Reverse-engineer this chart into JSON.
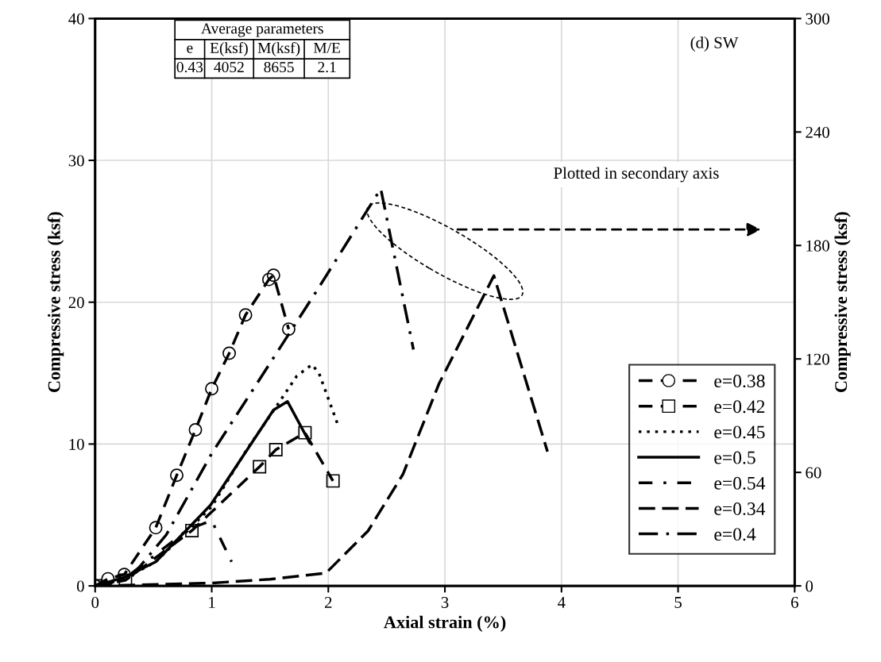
{
  "chart_data": {
    "type": "line",
    "xlabel": "Axial strain (%)",
    "ylabel": "Compressive stress (ksf)",
    "y2label": "Compressive stress (ksf)",
    "xlim": [
      0,
      6
    ],
    "xticks": [
      0,
      1,
      2,
      3,
      4,
      5,
      6
    ],
    "ylim": [
      0,
      40
    ],
    "yticks": [
      0,
      10,
      20,
      30,
      40
    ],
    "y2lim": [
      0,
      300
    ],
    "y2ticks": [
      0,
      60,
      120,
      180,
      240,
      300
    ],
    "grid": true,
    "legend": "bottom right",
    "annotations": [
      "(d) SW",
      "Plotted in secondary axis",
      "Average parameters",
      "e",
      "E(ksf)",
      "M(ksf)",
      "M/E",
      "0.43",
      "4052",
      "8655",
      "2.1"
    ],
    "series": [
      {
        "name": "e=0.38",
        "color": "#000000",
        "marker": "circle",
        "line_style": "dashed",
        "x": [
          0,
          0.11,
          0.25,
          0.52,
          0.7,
          0.86,
          1.0,
          1.15,
          1.29,
          1.49,
          1.53,
          1.66
        ],
        "values": [
          0,
          0.5,
          0.8,
          4.1,
          7.8,
          11.0,
          13.9,
          16.4,
          19.1,
          21.6,
          21.9,
          18.1
        ]
      },
      {
        "name": "e=0.42",
        "color": "#000000",
        "marker": "square",
        "line_style": "dashed",
        "x": [
          0,
          0.26,
          0.83,
          1.41,
          1.55,
          1.8,
          2.04
        ],
        "values": [
          0,
          0.4,
          3.9,
          8.4,
          9.6,
          10.8,
          7.4
        ]
      },
      {
        "name": "e=0.45",
        "color": "#000000",
        "marker": "none",
        "line_style": "dotted",
        "x": [
          0,
          0.25,
          0.52,
          0.82,
          1.0,
          1.3,
          1.55,
          1.73,
          1.86,
          1.92,
          2.08
        ],
        "values": [
          0,
          0.5,
          1.7,
          4.1,
          5.6,
          9.6,
          12.6,
          14.8,
          15.6,
          15.0,
          11.4
        ]
      },
      {
        "name": "e=0.5",
        "color": "#000000",
        "marker": "none",
        "line_style": "solid",
        "x": [
          0,
          0.25,
          0.52,
          0.99,
          1.53,
          1.65,
          1.84
        ],
        "values": [
          0,
          0.6,
          1.7,
          5.7,
          12.4,
          13.0,
          10.1
        ]
      },
      {
        "name": "e=0.54",
        "color": "#000000",
        "marker": "none",
        "line_style": "dashdot",
        "x": [
          0,
          0.3,
          0.8,
          1.0,
          1.17
        ],
        "values": [
          0,
          0.8,
          4.0,
          4.6,
          1.7
        ]
      },
      {
        "name": "e=0.34",
        "color": "#000000",
        "marker": "none",
        "line_style": "longdash",
        "axis": "y2",
        "x": [
          0,
          1.0,
          1.5,
          1.98,
          2.34,
          2.64,
          2.95,
          3.42,
          3.88
        ],
        "values": [
          0,
          1.5,
          3.5,
          6.8,
          29,
          59,
          107,
          164,
          71
        ]
      },
      {
        "name": "e=0.4",
        "color": "#000000",
        "marker": "none",
        "line_style": "longdashdot",
        "axis": "y2",
        "x": [
          0,
          0.3,
          0.61,
          1.0,
          1.89,
          2.45,
          2.73
        ],
        "values": [
          0,
          4,
          27,
          70,
          155,
          210,
          125
        ]
      }
    ]
  }
}
